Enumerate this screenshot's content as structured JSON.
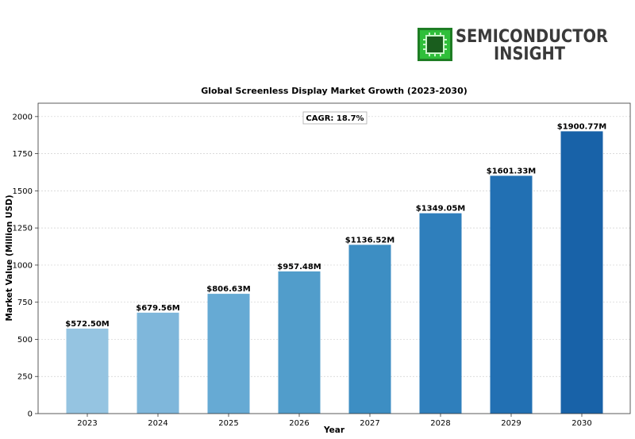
{
  "logo": {
    "line1": "SEMICONDUCTOR",
    "line2": "INSIGHT",
    "icon": "chip-icon",
    "accent_color": "#2fbf3a"
  },
  "chart_data": {
    "type": "bar",
    "title": "Global Screenless Display Market Growth (2023-2030)",
    "xlabel": "Year",
    "ylabel": "Market Value (Million USD)",
    "categories": [
      "2023",
      "2024",
      "2025",
      "2026",
      "2027",
      "2028",
      "2029",
      "2030"
    ],
    "values": [
      572.5,
      679.56,
      806.63,
      957.48,
      1136.52,
      1349.05,
      1601.33,
      1900.77
    ],
    "data_labels": [
      "$572.50M",
      "$679.56M",
      "$806.63M",
      "$957.48M",
      "$1136.52M",
      "$1349.05M",
      "$1601.33M",
      "$1900.77M"
    ],
    "ylim": [
      0,
      2090
    ],
    "yticks": [
      0,
      250,
      500,
      750,
      1000,
      1250,
      1500,
      1750,
      2000
    ],
    "grid": true,
    "annotation": "CAGR: 18.7%",
    "bar_colors": [
      "#95c4e1",
      "#7fb7db",
      "#66aad4",
      "#519dcb",
      "#3d8ec3",
      "#2f7fbc",
      "#2270b3",
      "#1862a8"
    ]
  }
}
